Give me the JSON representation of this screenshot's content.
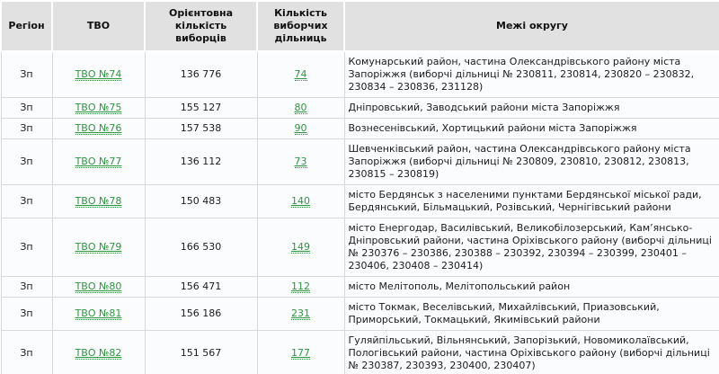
{
  "colors": {
    "link_green": "#2e9640",
    "header_bg": "#e1e1e1",
    "cell_bg": "#fbfcfd",
    "border": "#d9d9d9"
  },
  "table": {
    "headers": {
      "region": "Регіон",
      "tvo": "ТВО",
      "voters": "Орієнтовна кількість виборців",
      "stations": "Кількість виборчих дільниць",
      "bounds": "Межі округу"
    },
    "rows": [
      {
        "region": "Зп",
        "tvo": "ТВО №74",
        "voters": "136 776",
        "stations": "74",
        "bounds": "Комунарський район, частина Олександрівського району міста Запоріжжя (виборчі дільниці № 230811, 230814, 230820 – 230832, 230834 – 230836, 231128)"
      },
      {
        "region": "Зп",
        "tvo": "ТВО №75",
        "voters": "155 127",
        "stations": "80",
        "bounds": "Дніпровський, Заводський райони міста Запоріжжя"
      },
      {
        "region": "Зп",
        "tvo": "ТВО №76",
        "voters": "157 538",
        "stations": "90",
        "bounds": "Вознесенівський, Хортицький райони міста Запоріжжя"
      },
      {
        "region": "Зп",
        "tvo": "ТВО №77",
        "voters": "136 112",
        "stations": "73",
        "bounds": "Шевченківський район, частина Олександрівського району міста Запоріжжя (виборчі дільниці № 230809, 230810, 230812, 230813, 230815 – 230819)"
      },
      {
        "region": "Зп",
        "tvo": "ТВО №78",
        "voters": "150 483",
        "stations": "140",
        "bounds": "місто Бердянськ з населеними пунктами Бердянської міської ради, Бердянський, Більмацький, Розівський, Чернігівський райони"
      },
      {
        "region": "Зп",
        "tvo": "ТВО №79",
        "voters": "166 530",
        "stations": "149",
        "bounds": "місто Енергодар, Василівський, Великобілозерський, Кам’янсько-Дніпровський райони, частина Оріхівського району (виборчі дільниці № 230376 – 230386, 230388 – 230392, 230394 – 230399, 230401 –230406, 230408 – 230414)"
      },
      {
        "region": "Зп",
        "tvo": "ТВО №80",
        "voters": "156 471",
        "stations": "112",
        "bounds": "місто Мелітополь, Мелітопольський район"
      },
      {
        "region": "Зп",
        "tvo": "ТВО №81",
        "voters": "156 186",
        "stations": "231",
        "bounds": "місто Токмак, Веселівський, Михайлівський, Приазовський, Приморський, Токмацький, Якимівський райони"
      },
      {
        "region": "Зп",
        "tvo": "ТВО №82",
        "voters": "151 567",
        "stations": "177",
        "bounds": "Гуляйпільський, Вільнянський, Запорізький, Новомиколаївський, Пологівський райони, частина Оріхівського району (виборчі дільниці № 230387, 230393, 230400, 230407)"
      }
    ]
  }
}
